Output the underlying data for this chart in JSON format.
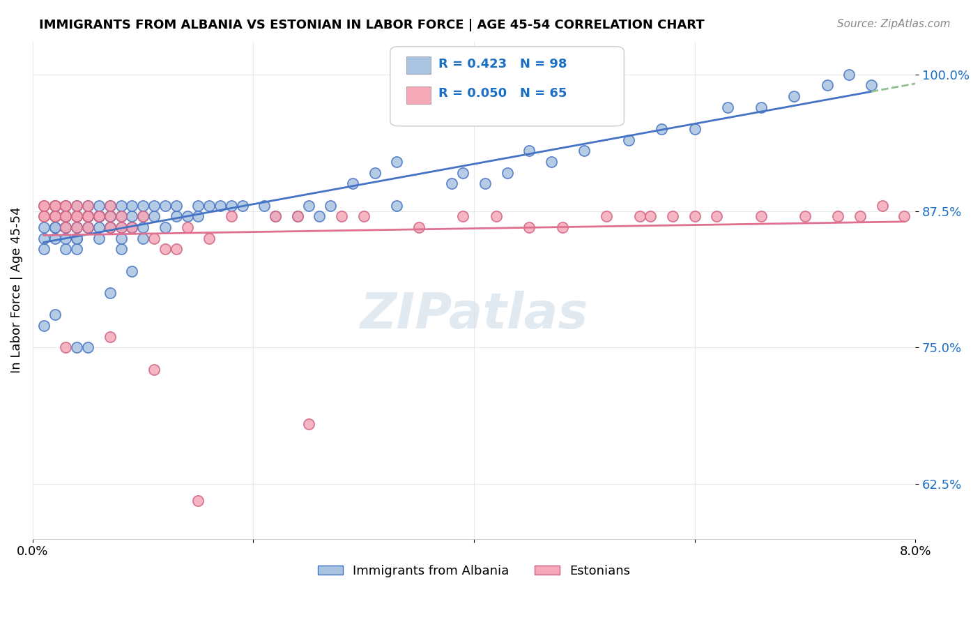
{
  "title": "IMMIGRANTS FROM ALBANIA VS ESTONIAN IN LABOR FORCE | AGE 45-54 CORRELATION CHART",
  "source": "Source: ZipAtlas.com",
  "xlabel": "",
  "ylabel": "In Labor Force | Age 45-54",
  "xlim": [
    0.0,
    0.08
  ],
  "ylim": [
    0.575,
    1.03
  ],
  "yticks": [
    0.625,
    0.75,
    0.875,
    1.0
  ],
  "ytick_labels": [
    "62.5%",
    "75.0%",
    "87.5%",
    "100.0%"
  ],
  "xticks": [
    0.0,
    0.02,
    0.04,
    0.06,
    0.08
  ],
  "xtick_labels": [
    "0.0%",
    "",
    "",
    "",
    "8.0%"
  ],
  "background_color": "#ffffff",
  "grid_color": "#e0e0e0",
  "albania_color": "#a8c4e0",
  "estonian_color": "#f4a8b8",
  "albania_R": 0.423,
  "albania_N": 98,
  "estonian_R": 0.05,
  "estonian_N": 65,
  "legend_R_color": "#1a6fc4",
  "legend_N_color": "#e03030",
  "trendline_albania_color": "#4472c4",
  "trendline_estonian_color": "#e07090",
  "trendline_extend_color": "#90c090",
  "watermark": "ZIPatlas",
  "albania_x": [
    0.001,
    0.001,
    0.001,
    0.002,
    0.002,
    0.002,
    0.002,
    0.002,
    0.002,
    0.003,
    0.003,
    0.003,
    0.003,
    0.003,
    0.003,
    0.003,
    0.004,
    0.004,
    0.004,
    0.004,
    0.004,
    0.004,
    0.004,
    0.005,
    0.005,
    0.005,
    0.005,
    0.005,
    0.005,
    0.006,
    0.006,
    0.006,
    0.006,
    0.006,
    0.006,
    0.007,
    0.007,
    0.007,
    0.007,
    0.007,
    0.008,
    0.008,
    0.008,
    0.008,
    0.008,
    0.009,
    0.009,
    0.009,
    0.009,
    0.01,
    0.01,
    0.01,
    0.01,
    0.011,
    0.011,
    0.012,
    0.012,
    0.013,
    0.013,
    0.014,
    0.015,
    0.015,
    0.016,
    0.017,
    0.018,
    0.019,
    0.021,
    0.022,
    0.024,
    0.025,
    0.026,
    0.027,
    0.029,
    0.031,
    0.033,
    0.038,
    0.039,
    0.041,
    0.043,
    0.045,
    0.047,
    0.05,
    0.054,
    0.057,
    0.06,
    0.063,
    0.066,
    0.069,
    0.072,
    0.074,
    0.076,
    0.033,
    0.004,
    0.002,
    0.001,
    0.007,
    0.005,
    0.009
  ],
  "albania_y": [
    0.84,
    0.86,
    0.85,
    0.85,
    0.87,
    0.86,
    0.86,
    0.88,
    0.87,
    0.84,
    0.85,
    0.86,
    0.87,
    0.88,
    0.86,
    0.87,
    0.87,
    0.86,
    0.85,
    0.84,
    0.85,
    0.88,
    0.86,
    0.87,
    0.86,
    0.87,
    0.87,
    0.88,
    0.86,
    0.86,
    0.87,
    0.85,
    0.87,
    0.88,
    0.87,
    0.87,
    0.86,
    0.88,
    0.87,
    0.86,
    0.87,
    0.88,
    0.86,
    0.84,
    0.85,
    0.86,
    0.86,
    0.87,
    0.88,
    0.86,
    0.85,
    0.87,
    0.88,
    0.87,
    0.88,
    0.88,
    0.86,
    0.87,
    0.88,
    0.87,
    0.88,
    0.87,
    0.88,
    0.88,
    0.88,
    0.88,
    0.88,
    0.87,
    0.87,
    0.88,
    0.87,
    0.88,
    0.9,
    0.91,
    0.88,
    0.9,
    0.91,
    0.9,
    0.91,
    0.93,
    0.92,
    0.93,
    0.94,
    0.95,
    0.95,
    0.97,
    0.97,
    0.98,
    0.99,
    1.0,
    0.99,
    0.92,
    0.75,
    0.78,
    0.77,
    0.8,
    0.75,
    0.82
  ],
  "estonian_x": [
    0.001,
    0.001,
    0.001,
    0.001,
    0.002,
    0.002,
    0.002,
    0.002,
    0.002,
    0.002,
    0.003,
    0.003,
    0.003,
    0.003,
    0.003,
    0.003,
    0.004,
    0.004,
    0.004,
    0.004,
    0.005,
    0.005,
    0.005,
    0.005,
    0.006,
    0.006,
    0.007,
    0.007,
    0.007,
    0.008,
    0.008,
    0.009,
    0.01,
    0.011,
    0.012,
    0.013,
    0.014,
    0.016,
    0.018,
    0.022,
    0.024,
    0.028,
    0.03,
    0.035,
    0.039,
    0.042,
    0.045,
    0.048,
    0.052,
    0.055,
    0.056,
    0.058,
    0.06,
    0.062,
    0.066,
    0.07,
    0.073,
    0.075,
    0.077,
    0.079,
    0.003,
    0.007,
    0.011,
    0.015,
    0.025
  ],
  "estonian_y": [
    0.88,
    0.87,
    0.88,
    0.87,
    0.87,
    0.88,
    0.87,
    0.88,
    0.88,
    0.87,
    0.87,
    0.88,
    0.87,
    0.88,
    0.87,
    0.86,
    0.86,
    0.87,
    0.88,
    0.87,
    0.86,
    0.87,
    0.87,
    0.88,
    0.87,
    0.87,
    0.88,
    0.86,
    0.87,
    0.86,
    0.87,
    0.86,
    0.87,
    0.85,
    0.84,
    0.84,
    0.86,
    0.85,
    0.87,
    0.87,
    0.87,
    0.87,
    0.87,
    0.86,
    0.87,
    0.87,
    0.86,
    0.86,
    0.87,
    0.87,
    0.87,
    0.87,
    0.87,
    0.87,
    0.87,
    0.87,
    0.87,
    0.87,
    0.88,
    0.87,
    0.75,
    0.76,
    0.73,
    0.61,
    0.68
  ]
}
